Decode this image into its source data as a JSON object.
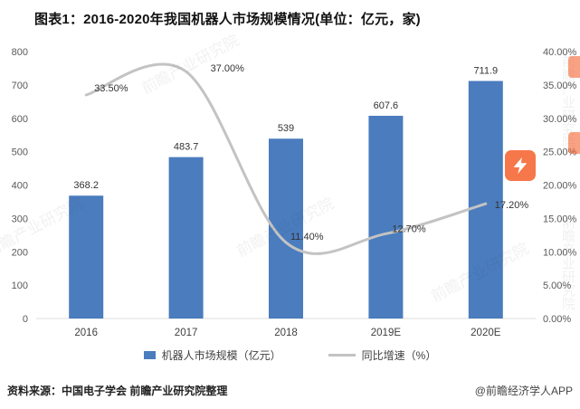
{
  "title": "图表1：2016-2020年我国机器人市场规模情况(单位：亿元，家)",
  "chart_data": {
    "type": "combo_bar_line",
    "title": "图表1：2016-2020年我国机器人市场规模情况(单位：亿元，家)",
    "categories": [
      "2016",
      "2017",
      "2018",
      "2019E",
      "2020E"
    ],
    "series": [
      {
        "name": "机器人市场规模（亿元）",
        "type": "bar",
        "axis": "left",
        "values": [
          368.2,
          483.7,
          539,
          607.6,
          711.9
        ],
        "labels": [
          "368.2",
          "483.7",
          "539",
          "607.6",
          "711.9"
        ],
        "color": "#4a7cbe"
      },
      {
        "name": "同比增速（%）",
        "type": "line",
        "axis": "right",
        "values": [
          33.5,
          37.0,
          11.4,
          12.7,
          17.2
        ],
        "labels": [
          "33.50%",
          "37.00%",
          "11.40%",
          "12.70%",
          "17.20%"
        ],
        "color": "#c3c3c3"
      }
    ],
    "left_axis": {
      "min": 0,
      "max": 800,
      "step": 100
    },
    "right_axis": {
      "min": 0,
      "max": 40,
      "step": 5,
      "suffix": "%",
      "decimals": 2
    },
    "grid": false,
    "legend_position": "bottom"
  },
  "footer": {
    "source": "资料来源：中国电子学会 前瞻产业研究院整理",
    "credit": "@前瞻经济学人APP"
  },
  "watermark": {
    "text": "前瞻产业研究院",
    "logo": "qianzhan-logo"
  }
}
